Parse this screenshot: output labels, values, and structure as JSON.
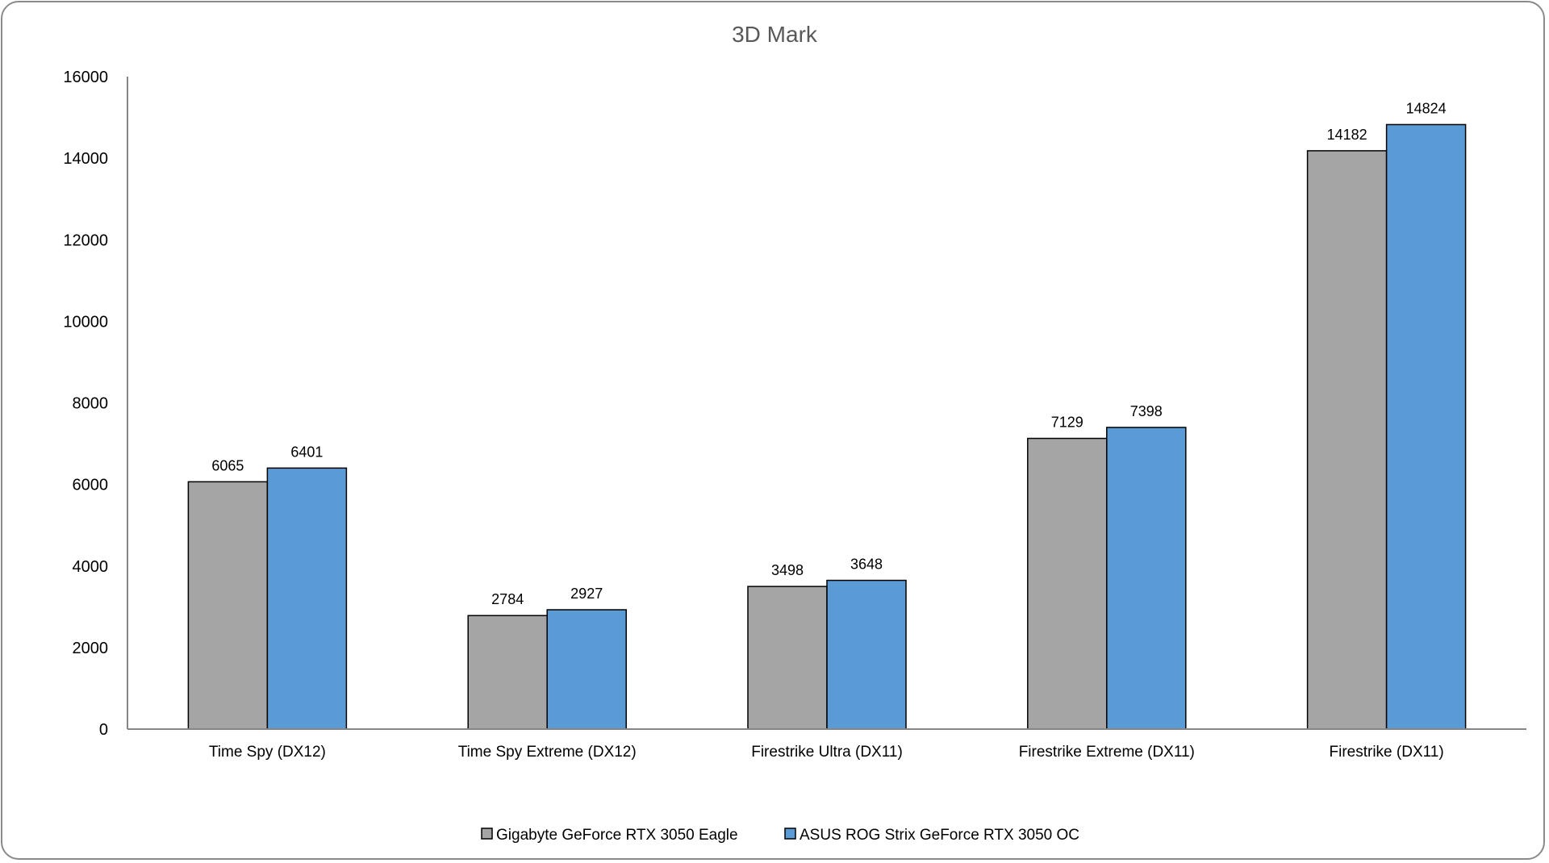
{
  "chart_data": {
    "type": "bar",
    "title": "3D Mark",
    "xlabel": "",
    "ylabel": "",
    "ylim": [
      0,
      16000
    ],
    "yticks": [
      0,
      2000,
      4000,
      6000,
      8000,
      10000,
      12000,
      14000,
      16000
    ],
    "grid": false,
    "legend_position": "bottom",
    "categories": [
      "Time Spy (DX12)",
      "Time Spy Extreme (DX12)",
      "Firestrike Ultra (DX11)",
      "Firestrike Extreme (DX11)",
      "Firestrike (DX11)"
    ],
    "series": [
      {
        "name": "Gigabyte GeForce RTX 3050 Eagle",
        "color": "#a5a5a5",
        "values": [
          6065,
          2784,
          3498,
          7129,
          14182
        ]
      },
      {
        "name": "ASUS ROG Strix GeForce RTX 3050 OC",
        "color": "#5b9bd5",
        "values": [
          6401,
          2927,
          3648,
          7398,
          14824
        ]
      }
    ]
  }
}
